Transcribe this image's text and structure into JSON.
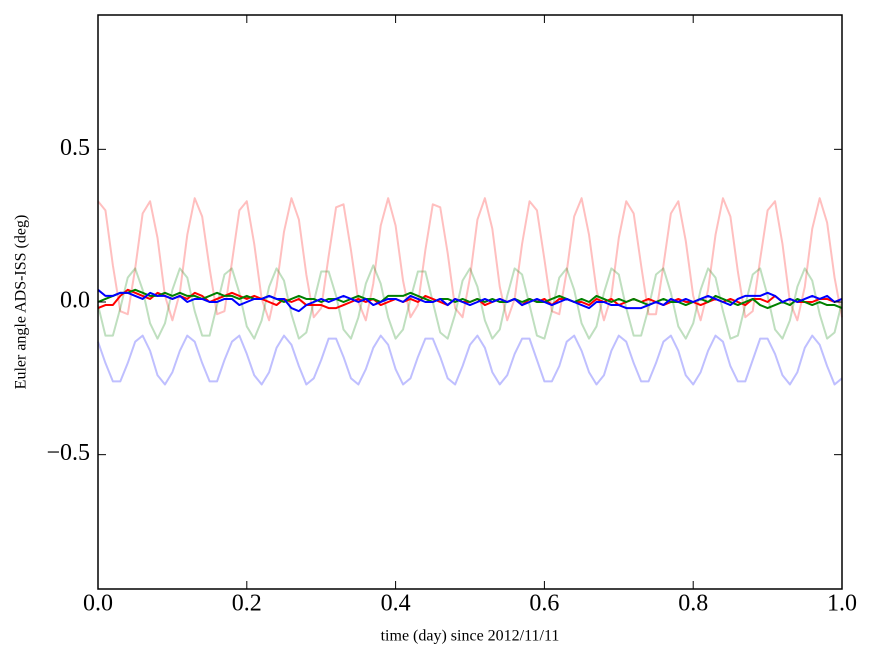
{
  "chart_data": {
    "type": "line",
    "xlabel": "time (day) since 2012/11/11",
    "ylabel": "Euler angle ADS-ISS (deg)",
    "xlim": [
      0,
      1
    ],
    "ylim": [
      -0.94,
      0.94
    ],
    "xticks": [
      {
        "value": 0,
        "label": "0.0"
      },
      {
        "value": 0.2,
        "label": "0.2"
      },
      {
        "value": 0.4,
        "label": "0.4"
      },
      {
        "value": 0.6,
        "label": "0.6"
      },
      {
        "value": 0.8,
        "label": "0.8"
      },
      {
        "value": 1,
        "label": "1.0"
      }
    ],
    "yticks": [
      {
        "value": -0.5,
        "label": "−0.5"
      },
      {
        "value": 0,
        "label": "0.0"
      },
      {
        "value": 0.5,
        "label": "0.5"
      }
    ],
    "grid": false,
    "x": [
      0,
      0.01,
      0.02,
      0.03,
      0.04,
      0.05,
      0.06,
      0.07,
      0.08,
      0.09,
      0.1,
      0.11,
      0.12,
      0.13,
      0.14,
      0.15,
      0.16,
      0.17,
      0.18,
      0.19,
      0.2,
      0.21,
      0.22,
      0.23,
      0.24,
      0.25,
      0.26,
      0.27,
      0.28,
      0.29,
      0.3,
      0.31,
      0.32,
      0.33,
      0.34,
      0.35,
      0.36,
      0.37,
      0.38,
      0.39,
      0.4,
      0.41,
      0.42,
      0.43,
      0.44,
      0.45,
      0.46,
      0.47,
      0.48,
      0.49,
      0.5,
      0.51,
      0.52,
      0.53,
      0.54,
      0.55,
      0.56,
      0.57,
      0.58,
      0.59,
      0.6,
      0.61,
      0.62,
      0.63,
      0.64,
      0.65,
      0.66,
      0.67,
      0.68,
      0.69,
      0.7,
      0.71,
      0.72,
      0.73,
      0.74,
      0.75,
      0.76,
      0.77,
      0.78,
      0.79,
      0.8,
      0.81,
      0.82,
      0.83,
      0.84,
      0.85,
      0.86,
      0.87,
      0.88,
      0.89,
      0.9,
      0.91,
      0.92,
      0.93,
      0.94,
      0.95,
      0.96,
      0.97,
      0.98,
      0.99,
      1
    ],
    "series": [
      {
        "color": "#ff0000",
        "alpha": 0.25,
        "width": 2,
        "values": [
          0.33,
          0.3,
          0.12,
          -0.03,
          -0.04,
          0.11,
          0.29,
          0.33,
          0.21,
          0.02,
          -0.06,
          0.03,
          0.22,
          0.34,
          0.28,
          0.11,
          -0.04,
          -0.03,
          0.13,
          0.3,
          0.33,
          0.19,
          0.01,
          -0.06,
          0.05,
          0.23,
          0.34,
          0.27,
          0.09,
          -0.05,
          -0.02,
          0.15,
          0.31,
          0.32,
          0.17,
          0,
          -0.06,
          0.06,
          0.25,
          0.34,
          0.25,
          0.07,
          -0.05,
          -0.01,
          0.17,
          0.32,
          0.31,
          0.16,
          -0.02,
          -0.05,
          0.08,
          0.27,
          0.34,
          0.24,
          0.05,
          -0.06,
          0.01,
          0.19,
          0.33,
          0.3,
          0.14,
          -0.03,
          -0.04,
          0.1,
          0.28,
          0.34,
          0.22,
          0.04,
          -0.06,
          0.02,
          0.21,
          0.33,
          0.29,
          0.12,
          -0.04,
          -0.04,
          0.12,
          0.29,
          0.33,
          0.2,
          0.02,
          -0.06,
          0.04,
          0.22,
          0.34,
          0.28,
          0.1,
          -0.05,
          -0.03,
          0.14,
          0.3,
          0.33,
          0.19,
          0,
          -0.06,
          0.05,
          0.24,
          0.34,
          0.26,
          0.08,
          -0.05
        ]
      },
      {
        "color": "#008000",
        "alpha": 0.25,
        "width": 2,
        "values": [
          -0.01,
          -0.11,
          -0.11,
          -0.02,
          0.08,
          0.11,
          0.04,
          -0.07,
          -0.12,
          -0.07,
          0.04,
          0.11,
          0.08,
          -0.03,
          -0.11,
          -0.11,
          -0.01,
          0.09,
          0.11,
          0.03,
          -0.08,
          -0.12,
          -0.06,
          0.05,
          0.11,
          0.07,
          -0.04,
          -0.12,
          -0.1,
          0,
          0.1,
          0.1,
          0.02,
          -0.09,
          -0.12,
          -0.05,
          0.06,
          0.12,
          0.06,
          -0.05,
          -0.12,
          -0.09,
          0.01,
          0.1,
          0.1,
          0,
          -0.1,
          -0.12,
          -0.04,
          0.07,
          0.11,
          0.05,
          -0.06,
          -0.12,
          -0.09,
          0.02,
          0.11,
          0.09,
          -0.01,
          -0.11,
          -0.12,
          -0.03,
          0.08,
          0.11,
          0.04,
          -0.07,
          -0.12,
          -0.08,
          0.03,
          0.11,
          0.09,
          -0.02,
          -0.11,
          -0.11,
          -0.02,
          0.09,
          0.11,
          0.03,
          -0.08,
          -0.12,
          -0.07,
          0.04,
          0.11,
          0.08,
          -0.03,
          -0.12,
          -0.11,
          -0.01,
          0.09,
          0.11,
          0.02,
          -0.09,
          -0.12,
          -0.06,
          0.05,
          0.11,
          0.07,
          -0.04,
          -0.12,
          -0.1,
          0
        ]
      },
      {
        "color": "#0000ff",
        "alpha": 0.25,
        "width": 2,
        "values": [
          -0.13,
          -0.2,
          -0.26,
          -0.26,
          -0.2,
          -0.13,
          -0.11,
          -0.16,
          -0.24,
          -0.27,
          -0.23,
          -0.16,
          -0.11,
          -0.13,
          -0.2,
          -0.26,
          -0.26,
          -0.19,
          -0.13,
          -0.11,
          -0.17,
          -0.24,
          -0.27,
          -0.23,
          -0.15,
          -0.11,
          -0.14,
          -0.21,
          -0.27,
          -0.25,
          -0.19,
          -0.12,
          -0.12,
          -0.18,
          -0.25,
          -0.27,
          -0.22,
          -0.15,
          -0.11,
          -0.14,
          -0.22,
          -0.27,
          -0.25,
          -0.18,
          -0.12,
          -0.12,
          -0.18,
          -0.25,
          -0.27,
          -0.21,
          -0.14,
          -0.11,
          -0.15,
          -0.23,
          -0.27,
          -0.24,
          -0.17,
          -0.12,
          -0.12,
          -0.19,
          -0.26,
          -0.26,
          -0.21,
          -0.13,
          -0.11,
          -0.16,
          -0.23,
          -0.27,
          -0.24,
          -0.16,
          -0.11,
          -0.13,
          -0.2,
          -0.26,
          -0.26,
          -0.2,
          -0.13,
          -0.11,
          -0.16,
          -0.24,
          -0.27,
          -0.23,
          -0.16,
          -0.11,
          -0.13,
          -0.21,
          -0.26,
          -0.26,
          -0.19,
          -0.12,
          -0.12,
          -0.17,
          -0.24,
          -0.27,
          -0.23,
          -0.15,
          -0.11,
          -0.14,
          -0.21,
          -0.27,
          -0.25
        ]
      },
      {
        "color": "#ff0000",
        "alpha": 1,
        "width": 2,
        "values": [
          -0.02,
          -0.01,
          -0.01,
          0.02,
          0.04,
          0.03,
          0.02,
          0.01,
          0.03,
          0.02,
          0.01,
          0.02,
          0.01,
          0.03,
          0.02,
          0,
          0.01,
          0.02,
          0.03,
          0.02,
          0.01,
          0.02,
          0.01,
          0,
          -0.01,
          0.01,
          0,
          0.01,
          -0.01,
          -0.01,
          -0.01,
          -0.02,
          -0.02,
          -0.01,
          0,
          0.01,
          0,
          0.01,
          -0.01,
          0,
          0.01,
          0,
          0.01,
          0,
          0.02,
          0.01,
          0,
          -0.01,
          0.01,
          0,
          0,
          0.01,
          -0.01,
          0,
          0.01,
          0,
          0.01,
          -0.01,
          0.01,
          0,
          0.01,
          -0.01,
          0.01,
          0.01,
          0,
          0,
          -0.01,
          0.01,
          0,
          0.01,
          -0.01,
          0,
          0.01,
          0,
          0.01,
          0,
          -0.01,
          0,
          0.01,
          0,
          0,
          -0.01,
          0,
          0.01,
          0,
          0.01,
          0,
          -0.01,
          0.01,
          0.01,
          0,
          0.02,
          0,
          0.01,
          0,
          0,
          0,
          0.01,
          0.01,
          0,
          0.01
        ]
      },
      {
        "color": "#008000",
        "alpha": 1,
        "width": 2,
        "values": [
          0,
          0.01,
          0.02,
          0.03,
          0.03,
          0.04,
          0.03,
          0.02,
          0.02,
          0.03,
          0.02,
          0.03,
          0.02,
          0.02,
          0.01,
          0.02,
          0.03,
          0.02,
          0.02,
          0.01,
          0.02,
          0.01,
          0.01,
          0.02,
          0.01,
          0,
          0.01,
          0.02,
          0.01,
          0.01,
          0,
          0.01,
          0.01,
          0,
          0.01,
          0.02,
          0.01,
          0.01,
          0,
          0.02,
          0.02,
          0.02,
          0.03,
          0.02,
          0.01,
          0,
          0.01,
          0.01,
          0,
          0.01,
          0,
          0.01,
          0,
          0.01,
          0,
          0,
          0.01,
          0,
          0.01,
          0,
          0,
          0.01,
          0.02,
          0.01,
          0,
          0.01,
          0,
          0.02,
          0.01,
          0,
          0.01,
          0,
          0.01,
          0,
          -0.01,
          0,
          0.01,
          0,
          0,
          -0.01,
          0,
          0.01,
          0,
          0.02,
          0.01,
          0,
          -0.01,
          0,
          0.01,
          -0.01,
          -0.02,
          -0.01,
          0,
          -0.01,
          0.01,
          0,
          -0.01,
          0,
          -0.01,
          -0.01,
          -0.02
        ]
      },
      {
        "color": "#0000ff",
        "alpha": 1,
        "width": 2,
        "values": [
          0.04,
          0.02,
          0.02,
          0.03,
          0.03,
          0.02,
          0.01,
          0.03,
          0.02,
          0.02,
          0.01,
          0.02,
          0,
          0.01,
          0.01,
          0,
          0,
          0.01,
          0.01,
          -0.01,
          0,
          0.01,
          0.01,
          0.02,
          0.01,
          0.01,
          -0.02,
          -0.03,
          -0.01,
          0,
          0.01,
          0,
          0.01,
          0.02,
          0.01,
          0,
          0.01,
          -0.01,
          0,
          0.01,
          0.01,
          0,
          0.02,
          0.01,
          0,
          0,
          0.01,
          -0.01,
          0.01,
          0,
          -0.01,
          0,
          0.01,
          0,
          0.01,
          0,
          0.01,
          -0.01,
          0,
          0.01,
          0,
          -0.01,
          0,
          0.01,
          0,
          -0.01,
          -0.02,
          0,
          0,
          -0.01,
          -0.01,
          -0.02,
          -0.02,
          -0.02,
          -0.01,
          0,
          -0.01,
          0.01,
          0,
          0.01,
          0,
          0.01,
          0.02,
          0.01,
          0,
          -0.01,
          0.01,
          0.02,
          0.02,
          0.02,
          0.03,
          0.02,
          0,
          0.01,
          0,
          0.01,
          0.02,
          0.01,
          0.02,
          0,
          0.01
        ]
      }
    ]
  }
}
